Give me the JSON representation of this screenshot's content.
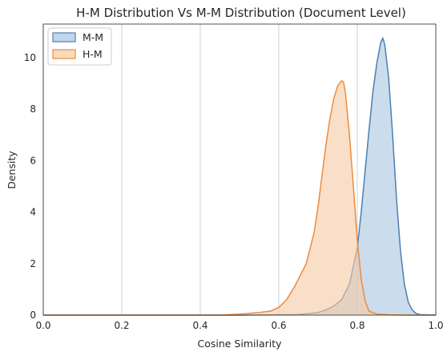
{
  "chart_data": {
    "type": "area",
    "title": "H-M Distribution Vs M-M Distribution (Document Level)",
    "xlabel": "Cosine Similarity",
    "ylabel": "Density",
    "xlim": [
      0.0,
      1.0
    ],
    "ylim": [
      0,
      11.3
    ],
    "xticks": [
      "0.0",
      "0.2",
      "0.4",
      "0.6",
      "0.8",
      "1.0"
    ],
    "yticks": [
      "0",
      "2",
      "4",
      "6",
      "8",
      "10"
    ],
    "grid": "vertical",
    "legend_position": "top-left",
    "series": [
      {
        "name": "M-M",
        "color": "#4a7fb5",
        "fill": "#a8c4e0",
        "x": [
          0.0,
          0.5,
          0.65,
          0.7,
          0.72,
          0.74,
          0.76,
          0.78,
          0.8,
          0.81,
          0.82,
          0.83,
          0.84,
          0.85,
          0.86,
          0.865,
          0.87,
          0.88,
          0.89,
          0.9,
          0.91,
          0.92,
          0.93,
          0.94,
          0.95,
          0.96,
          1.0
        ],
        "y": [
          0,
          0,
          0.02,
          0.1,
          0.2,
          0.35,
          0.6,
          1.2,
          2.6,
          4.0,
          5.6,
          7.2,
          8.7,
          9.8,
          10.6,
          10.75,
          10.5,
          9.2,
          7.0,
          4.5,
          2.5,
          1.2,
          0.5,
          0.2,
          0.06,
          0.02,
          0
        ]
      },
      {
        "name": "H-M",
        "color": "#ee8a3c",
        "fill": "#f7c9a3",
        "x": [
          0.0,
          0.45,
          0.5,
          0.55,
          0.58,
          0.6,
          0.62,
          0.64,
          0.65,
          0.67,
          0.69,
          0.7,
          0.71,
          0.72,
          0.73,
          0.74,
          0.75,
          0.76,
          0.765,
          0.77,
          0.78,
          0.79,
          0.8,
          0.81,
          0.82,
          0.83,
          0.85,
          0.88,
          0.92,
          1.0
        ],
        "y": [
          0,
          0,
          0.04,
          0.1,
          0.16,
          0.3,
          0.6,
          1.1,
          1.4,
          2.0,
          3.2,
          4.2,
          5.4,
          6.6,
          7.6,
          8.4,
          8.9,
          9.1,
          9.05,
          8.6,
          7.0,
          5.0,
          2.9,
          1.4,
          0.55,
          0.15,
          0.04,
          0.01,
          0,
          0
        ]
      }
    ]
  }
}
